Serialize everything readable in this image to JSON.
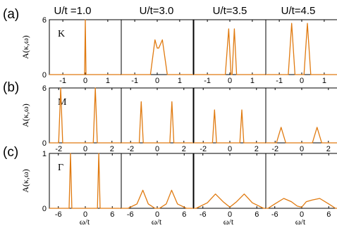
{
  "columns": [
    "U/t =1.0",
    "U/t=3.0",
    "U/t=3.5",
    "U/t=4.5"
  ],
  "rows": [
    {
      "tag": "(a)",
      "k_label": "K",
      "ylabel": "A(κ,ω)"
    },
    {
      "tag": "(b)",
      "k_label": "M",
      "ylabel": "A(κ,ω)"
    },
    {
      "tag": "(c)",
      "k_label": "Γ",
      "ylabel": "A(κ,ω)"
    }
  ],
  "xlabel": "ω/t",
  "colors": {
    "curve": "#e07a10",
    "axis": "#000000"
  },
  "chart_data": [
    {
      "type": "line",
      "panel": "a-1",
      "xlim": [
        -1.6,
        1.6
      ],
      "ylim": [
        0,
        6
      ],
      "xticks": [
        -1,
        0,
        1
      ],
      "yticks": [
        0,
        6
      ],
      "series": [
        {
          "x": [
            -1.6,
            -0.03,
            0.0,
            0.03,
            1.6
          ],
          "y": [
            0,
            0,
            6.0,
            0,
            0
          ]
        }
      ]
    },
    {
      "type": "line",
      "panel": "a-2",
      "xlim": [
        -1.6,
        1.6
      ],
      "xticks": [
        -1,
        0,
        1
      ],
      "series": [
        {
          "x": [
            -0.3,
            -0.1,
            0.0,
            0.07,
            0.23,
            0.45
          ],
          "y": [
            0,
            3.8,
            2.9,
            2.9,
            3.8,
            0
          ]
        }
      ]
    },
    {
      "type": "line",
      "panel": "a-3",
      "xlim": [
        -1.6,
        1.6
      ],
      "xticks": [
        -1,
        0,
        1
      ],
      "series": [
        {
          "x": [
            -0.2,
            -0.05,
            0.05,
            0.1,
            0.2,
            0.3,
            0.4,
            0.55
          ],
          "y": [
            0,
            5.0,
            0,
            0,
            5.0,
            0,
            0,
            0
          ]
        }
      ]
    },
    {
      "type": "line",
      "panel": "a-4",
      "xlim": [
        -1.6,
        1.6
      ],
      "xticks": [
        -1,
        0,
        1
      ],
      "series": [
        {
          "x": [
            -0.6,
            -0.45,
            -0.3,
            0.1,
            0.25,
            0.4
          ],
          "y": [
            0,
            5.6,
            0,
            0,
            5.6,
            0
          ]
        }
      ]
    },
    {
      "type": "line",
      "panel": "b-1",
      "xlim": [
        -2.7,
        2.7
      ],
      "ylim": [
        0,
        6
      ],
      "xticks": [
        -2,
        0,
        2
      ],
      "yticks": [
        0,
        6
      ],
      "series": [
        {
          "x": [
            -2.0,
            -1.85,
            -1.7,
            0.6,
            0.75,
            0.9
          ],
          "y": [
            0,
            6.0,
            0,
            0,
            6.0,
            0
          ]
        }
      ]
    },
    {
      "type": "line",
      "panel": "b-2",
      "xlim": [
        -2.7,
        2.7
      ],
      "xticks": [
        -2,
        0,
        2
      ],
      "series": [
        {
          "x": [
            -1.35,
            -1.2,
            -1.05,
            0.95,
            1.1,
            1.25
          ],
          "y": [
            0,
            4.5,
            0,
            0,
            4.5,
            0
          ]
        }
      ]
    },
    {
      "type": "line",
      "panel": "b-3",
      "xlim": [
        -2.7,
        2.7
      ],
      "xticks": [
        -2,
        0,
        2
      ],
      "series": [
        {
          "x": [
            -1.3,
            -1.15,
            -1.0,
            0.75,
            0.9,
            1.05
          ],
          "y": [
            0,
            3.6,
            0,
            0,
            3.6,
            0
          ]
        }
      ]
    },
    {
      "type": "line",
      "panel": "b-4",
      "xlim": [
        -2.7,
        2.7
      ],
      "xticks": [
        -2,
        0,
        2
      ],
      "series": [
        {
          "x": [
            -1.9,
            -1.55,
            -1.2,
            0.8,
            1.15,
            1.5
          ],
          "y": [
            0,
            1.7,
            0,
            0,
            1.7,
            0
          ]
        }
      ]
    },
    {
      "type": "line",
      "panel": "c-1",
      "xlim": [
        -8,
        8
      ],
      "ylim": [
        0,
        1
      ],
      "xticks": [
        -6,
        0,
        6
      ],
      "yticks": [
        0,
        1
      ],
      "series": [
        {
          "x": [
            -3.6,
            -3.3,
            -3.0,
            2.7,
            3.0,
            3.3
          ],
          "y": [
            0,
            1.0,
            0,
            0,
            1.0,
            0
          ]
        }
      ]
    },
    {
      "type": "line",
      "panel": "c-2",
      "xlim": [
        -8,
        8
      ],
      "xticks": [
        -6,
        0,
        6
      ],
      "series": [
        {
          "x": [
            -6.5,
            -4.5,
            -3.2,
            -2.0,
            -0.5,
            0.5,
            2.0,
            3.2,
            4.5,
            6.5
          ],
          "y": [
            0,
            0.08,
            0.33,
            0.08,
            0,
            0,
            0.08,
            0.33,
            0.08,
            0
          ]
        }
      ]
    },
    {
      "type": "line",
      "panel": "c-3",
      "xlim": [
        -8,
        8
      ],
      "xticks": [
        -6,
        0,
        6
      ],
      "series": [
        {
          "x": [
            -7.5,
            -5.0,
            -3.2,
            -1.5,
            0.0,
            1.5,
            3.2,
            5.0,
            7.5
          ],
          "y": [
            0,
            0.1,
            0.26,
            0.12,
            0.02,
            0.12,
            0.26,
            0.1,
            0
          ]
        }
      ]
    },
    {
      "type": "line",
      "panel": "c-4",
      "xlim": [
        -8,
        8
      ],
      "xticks": [
        -6,
        0,
        6
      ],
      "series": [
        {
          "x": [
            -7.5,
            -6.0,
            -4.0,
            -2.3,
            -1.0,
            0.0,
            1.0,
            2.3,
            4.0,
            6.0,
            7.5
          ],
          "y": [
            0,
            0.08,
            0.18,
            0.12,
            0.04,
            0.02,
            0.12,
            0.15,
            0.18,
            0.08,
            0
          ]
        }
      ]
    }
  ]
}
